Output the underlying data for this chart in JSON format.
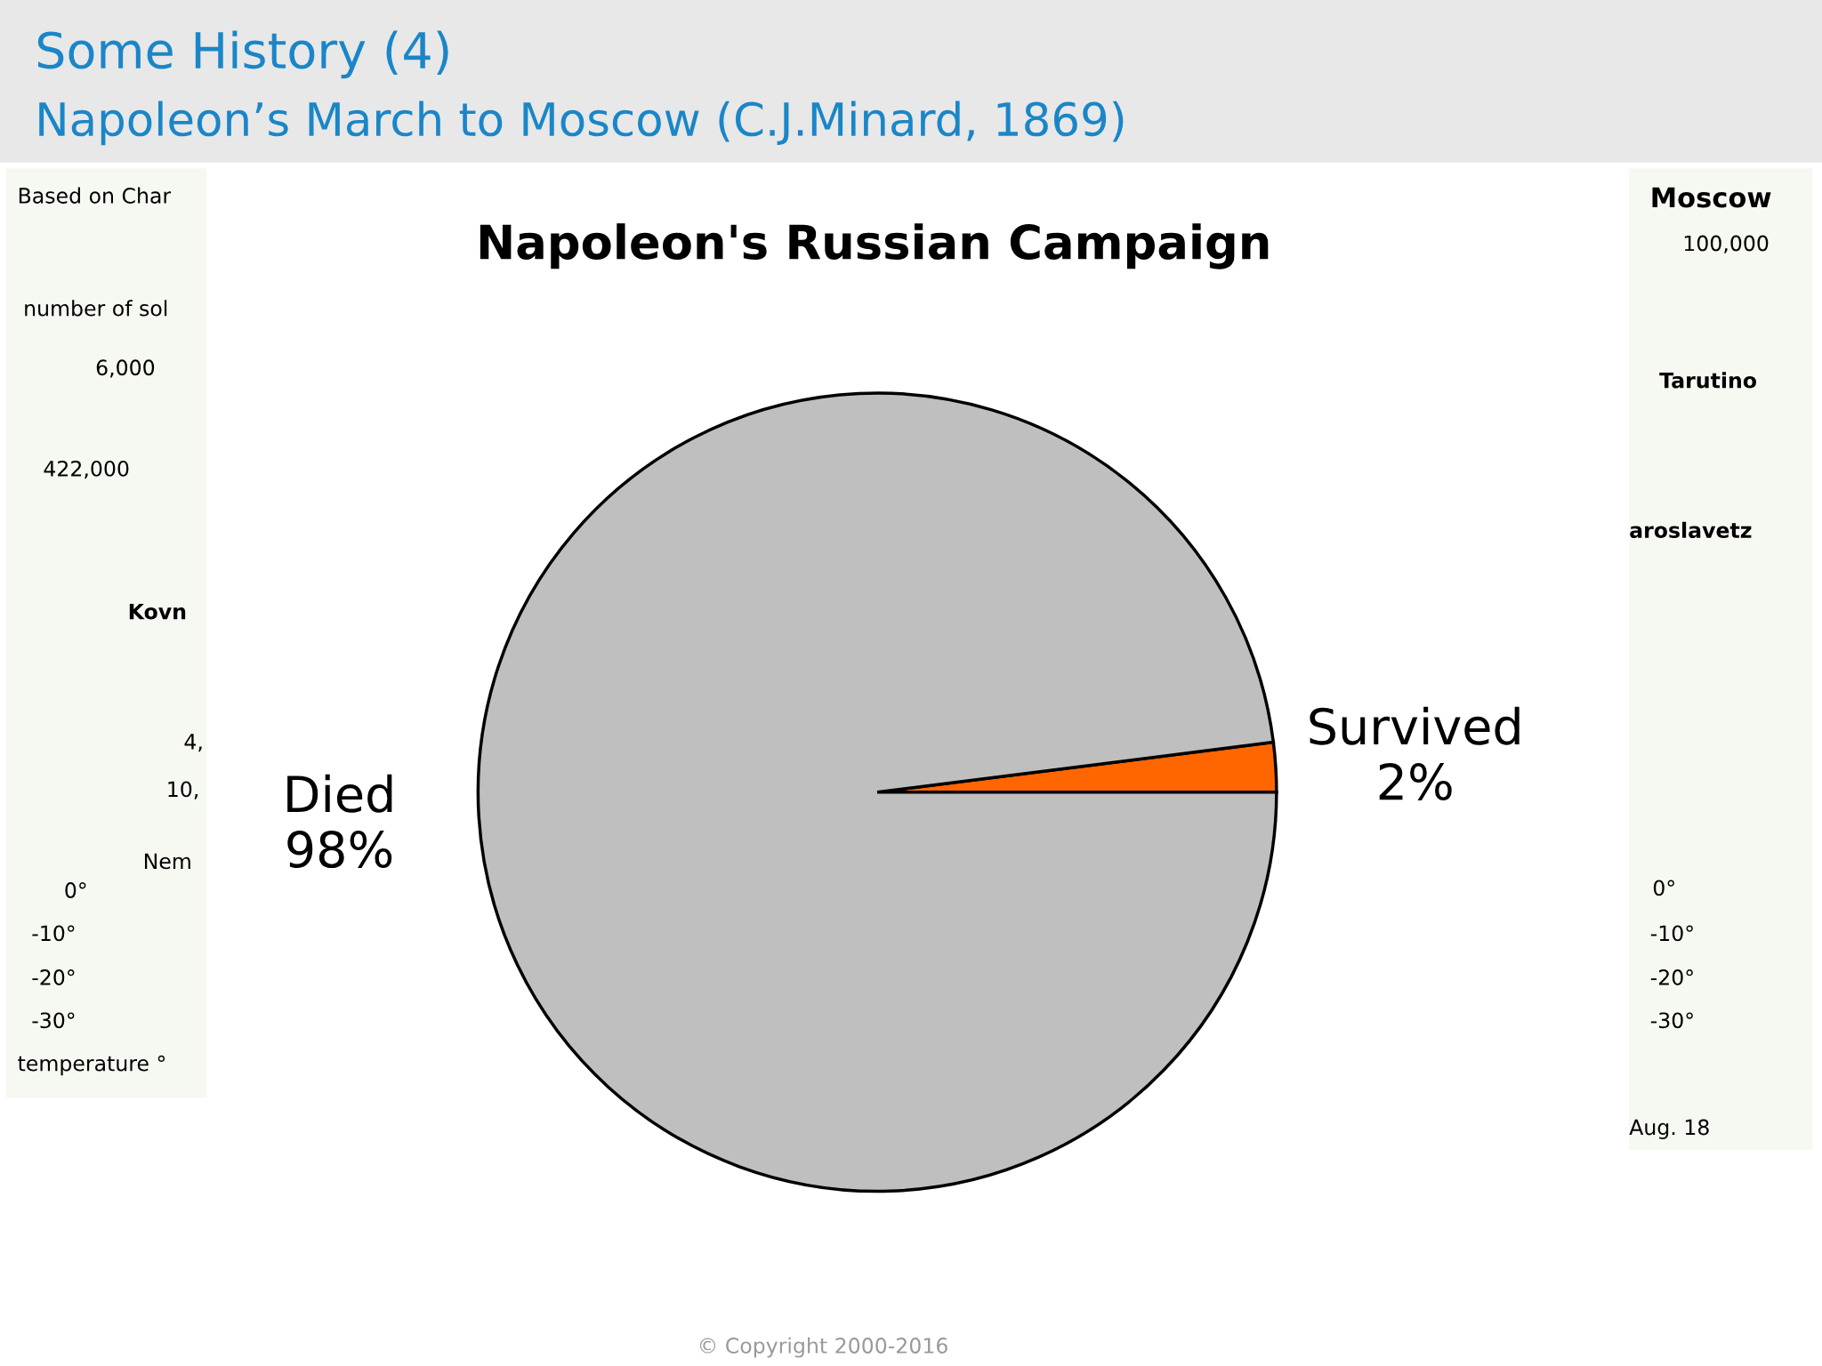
{
  "chart_data": {
    "type": "pie",
    "title": "Some History (4)",
    "subtitle": "Napoleon’s March to Moscow (C.J.Minard, 1869)",
    "xlabel": "Napoleon's Russian Campaign",
    "categories": [
      "Survived",
      "Died"
    ],
    "values": [
      2,
      98
    ],
    "colors": [
      "#ff6600",
      "#c0bfc0"
    ],
    "value_labels": [
      "2%",
      "98%"
    ],
    "annotations": [
      "Based on Char",
      "number of sol",
      "6,000",
      "422,000",
      "Kovn",
      "4,",
      "10,",
      "Nem",
      "0°",
      "-10°",
      "-20°",
      "-30°",
      "temperature °",
      "Moscow",
      "100,000",
      "Tarutino",
      "aroslavetz",
      "0°",
      "-10°",
      "-20°",
      "-30°",
      "Aug. 18",
      "© Copyright 2000-2016"
    ]
  }
}
